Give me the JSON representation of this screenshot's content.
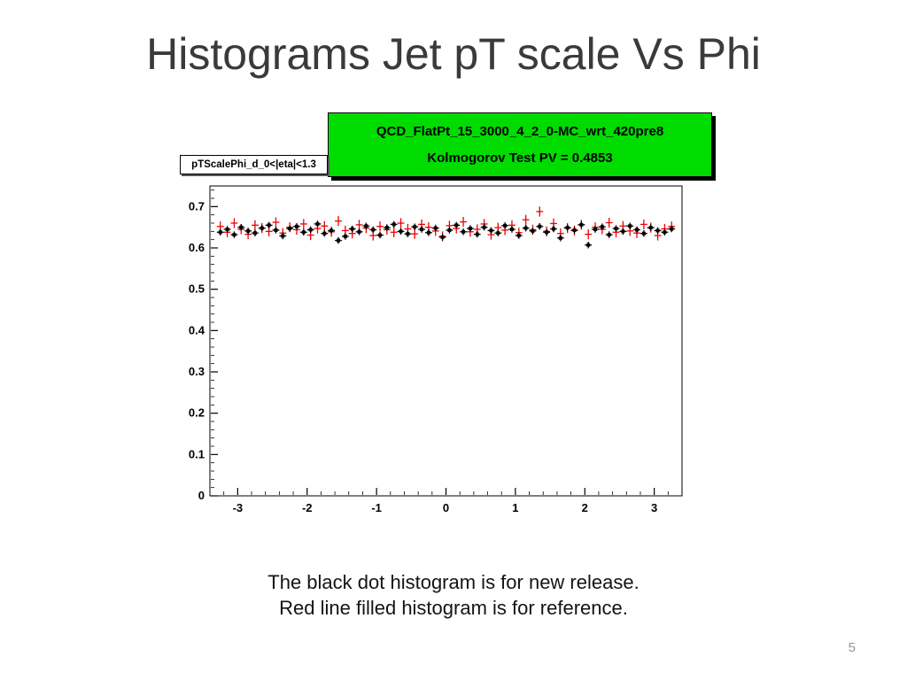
{
  "slide": {
    "title": "Histograms Jet pT scale Vs Phi",
    "caption_line1": "The black dot histogram is for new release.",
    "caption_line2": "Red line filled histogram is for reference.",
    "page_number": "5"
  },
  "plot": {
    "stats_box": {
      "line1": "QCD_FlatPt_15_3000_4_2_0-MC_wrt_420pre8",
      "line2": "Kolmogorov Test PV = 0.4853",
      "bg_color": "#00dc00",
      "text_color": "#000000"
    },
    "hist_label": "pTScalePhi_d_0<|eta|<1.3"
  },
  "chart_data": {
    "type": "scatter",
    "title": "",
    "xlabel": "",
    "ylabel": "",
    "xlim": [
      -3.4,
      3.4
    ],
    "ylim": [
      0,
      0.75
    ],
    "grid": false,
    "legend": "none (described in caption)",
    "x_ticks": [
      -3,
      -2,
      -1,
      0,
      1,
      2,
      3
    ],
    "y_ticks": [
      0,
      0.1,
      0.2,
      0.3,
      0.4,
      0.5,
      0.6,
      0.7
    ],
    "x": [
      -3.25,
      -3.15,
      -3.05,
      -2.95,
      -2.85,
      -2.75,
      -2.65,
      -2.55,
      -2.45,
      -2.35,
      -2.25,
      -2.15,
      -2.05,
      -1.95,
      -1.85,
      -1.75,
      -1.65,
      -1.55,
      -1.45,
      -1.35,
      -1.25,
      -1.15,
      -1.05,
      -0.95,
      -0.85,
      -0.75,
      -0.65,
      -0.55,
      -0.45,
      -0.35,
      -0.25,
      -0.15,
      -0.05,
      0.05,
      0.15,
      0.25,
      0.35,
      0.45,
      0.55,
      0.65,
      0.75,
      0.85,
      0.95,
      1.05,
      1.15,
      1.25,
      1.35,
      1.45,
      1.55,
      1.65,
      1.75,
      1.85,
      1.95,
      2.05,
      2.15,
      2.25,
      2.35,
      2.45,
      2.55,
      2.65,
      2.75,
      2.85,
      2.95,
      3.05,
      3.15,
      3.25
    ],
    "series": [
      {
        "name": "reference (red line filled histogram)",
        "color": "#ee0000",
        "marker": "cross",
        "yerr": 0.012,
        "y": [
          0.652,
          0.638,
          0.66,
          0.645,
          0.633,
          0.655,
          0.648,
          0.64,
          0.662,
          0.636,
          0.65,
          0.644,
          0.658,
          0.631,
          0.647,
          0.653,
          0.639,
          0.665,
          0.642,
          0.635,
          0.656,
          0.648,
          0.63,
          0.652,
          0.644,
          0.638,
          0.66,
          0.646,
          0.634,
          0.657,
          0.65,
          0.641,
          0.628,
          0.654,
          0.647,
          0.663,
          0.639,
          0.645,
          0.658,
          0.632,
          0.649,
          0.643,
          0.655,
          0.637,
          0.668,
          0.644,
          0.688,
          0.64,
          0.659,
          0.635,
          0.648,
          0.642,
          0.656,
          0.633,
          0.65,
          0.645,
          0.661,
          0.638,
          0.653,
          0.641,
          0.636,
          0.657,
          0.649,
          0.63,
          0.646,
          0.652
        ]
      },
      {
        "name": "new release (black dot histogram)",
        "color": "#000000",
        "marker": "square",
        "yerr": 0.008,
        "y": [
          0.638,
          0.645,
          0.632,
          0.65,
          0.641,
          0.636,
          0.648,
          0.655,
          0.643,
          0.629,
          0.647,
          0.652,
          0.638,
          0.644,
          0.658,
          0.635,
          0.642,
          0.618,
          0.628,
          0.646,
          0.639,
          0.653,
          0.644,
          0.631,
          0.649,
          0.657,
          0.64,
          0.634,
          0.651,
          0.645,
          0.637,
          0.648,
          0.626,
          0.643,
          0.655,
          0.639,
          0.647,
          0.633,
          0.65,
          0.642,
          0.636,
          0.654,
          0.645,
          0.63,
          0.648,
          0.641,
          0.652,
          0.638,
          0.646,
          0.624,
          0.649,
          0.643,
          0.656,
          0.607,
          0.645,
          0.651,
          0.632,
          0.647,
          0.64,
          0.653,
          0.644,
          0.635,
          0.649,
          0.642,
          0.638,
          0.646
        ]
      }
    ]
  }
}
